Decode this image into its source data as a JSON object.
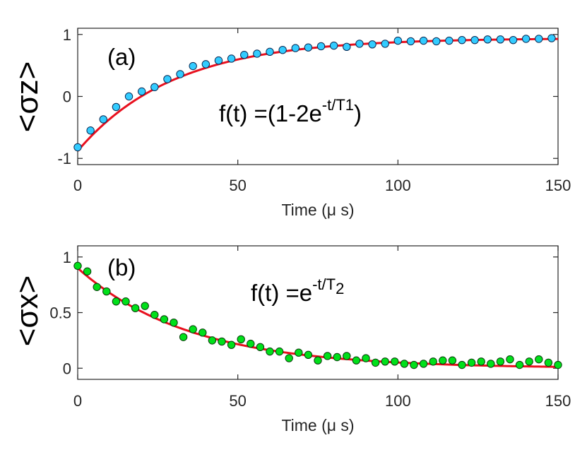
{
  "chart_data": [
    {
      "type": "scatter",
      "panel_label": "(a)",
      "ylabel": "<σz>",
      "xlabel": "Time (μ s)",
      "formula": {
        "prefix": "f(t) =(1-2e",
        "superscript": "-t/T",
        "subscript": "1",
        "suffix": ")"
      },
      "xlim": [
        0,
        150
      ],
      "ylim": [
        -1.1,
        1.1
      ],
      "xticks": [
        0,
        50,
        100,
        150
      ],
      "yticks": [
        -1,
        0,
        1
      ],
      "series": [
        {
          "name": "data",
          "marker_color": "#33ccff",
          "x": [
            0,
            4,
            8,
            12,
            16,
            20,
            24,
            28,
            32,
            36,
            40,
            44,
            48,
            52,
            56,
            60,
            64,
            68,
            72,
            76,
            80,
            84,
            88,
            92,
            96,
            100,
            104,
            108,
            112,
            116,
            120,
            124,
            128,
            132,
            136,
            140,
            144,
            148
          ],
          "y": [
            -0.82,
            -0.55,
            -0.37,
            -0.17,
            0.0,
            0.08,
            0.15,
            0.28,
            0.36,
            0.49,
            0.52,
            0.58,
            0.61,
            0.67,
            0.69,
            0.72,
            0.75,
            0.78,
            0.79,
            0.81,
            0.82,
            0.8,
            0.85,
            0.84,
            0.85,
            0.9,
            0.89,
            0.9,
            0.89,
            0.9,
            0.91,
            0.91,
            0.92,
            0.92,
            0.91,
            0.93,
            0.93,
            0.94
          ]
        },
        {
          "name": "fit",
          "line_color": "#e8101e",
          "model": "exp_recovery",
          "params": {
            "A": -0.88,
            "B": 0.94,
            "tau": 30
          }
        }
      ]
    },
    {
      "type": "scatter",
      "panel_label": "(b)",
      "ylabel": "<σx>",
      "xlabel": "Time (μ s)",
      "formula": {
        "prefix": "f(t) =e",
        "superscript": "-t/T",
        "subscript": "2",
        "suffix": ""
      },
      "xlim": [
        0,
        150
      ],
      "ylim": [
        -0.1,
        1.1
      ],
      "xticks": [
        0,
        50,
        100,
        150
      ],
      "yticks": [
        0,
        0.5,
        1
      ],
      "series": [
        {
          "name": "data",
          "marker_color": "#00e01a",
          "x": [
            0,
            3,
            6,
            9,
            12,
            15,
            18,
            21,
            24,
            27,
            30,
            33,
            36,
            39,
            42,
            45,
            48,
            51,
            54,
            57,
            60,
            63,
            66,
            69,
            72,
            75,
            78,
            81,
            84,
            87,
            90,
            93,
            96,
            99,
            102,
            105,
            108,
            111,
            114,
            117,
            120,
            123,
            126,
            129,
            132,
            135,
            138,
            141,
            144,
            147,
            150
          ],
          "y": [
            0.92,
            0.87,
            0.73,
            0.69,
            0.6,
            0.6,
            0.54,
            0.56,
            0.48,
            0.44,
            0.41,
            0.28,
            0.35,
            0.32,
            0.25,
            0.24,
            0.21,
            0.26,
            0.22,
            0.19,
            0.15,
            0.15,
            0.09,
            0.14,
            0.12,
            0.07,
            0.11,
            0.1,
            0.11,
            0.07,
            0.09,
            0.05,
            0.06,
            0.06,
            0.04,
            0.03,
            0.04,
            0.06,
            0.07,
            0.07,
            0.03,
            0.05,
            0.06,
            0.04,
            0.06,
            0.08,
            0.03,
            0.06,
            0.08,
            0.05,
            0.03
          ],
          "marker_edge": "#0a3a0a"
        },
        {
          "name": "fit",
          "line_color": "#e8101e",
          "model": "exp_decay",
          "params": {
            "A": 0.9,
            "tau": 35,
            "C": 0.0
          }
        }
      ]
    }
  ]
}
